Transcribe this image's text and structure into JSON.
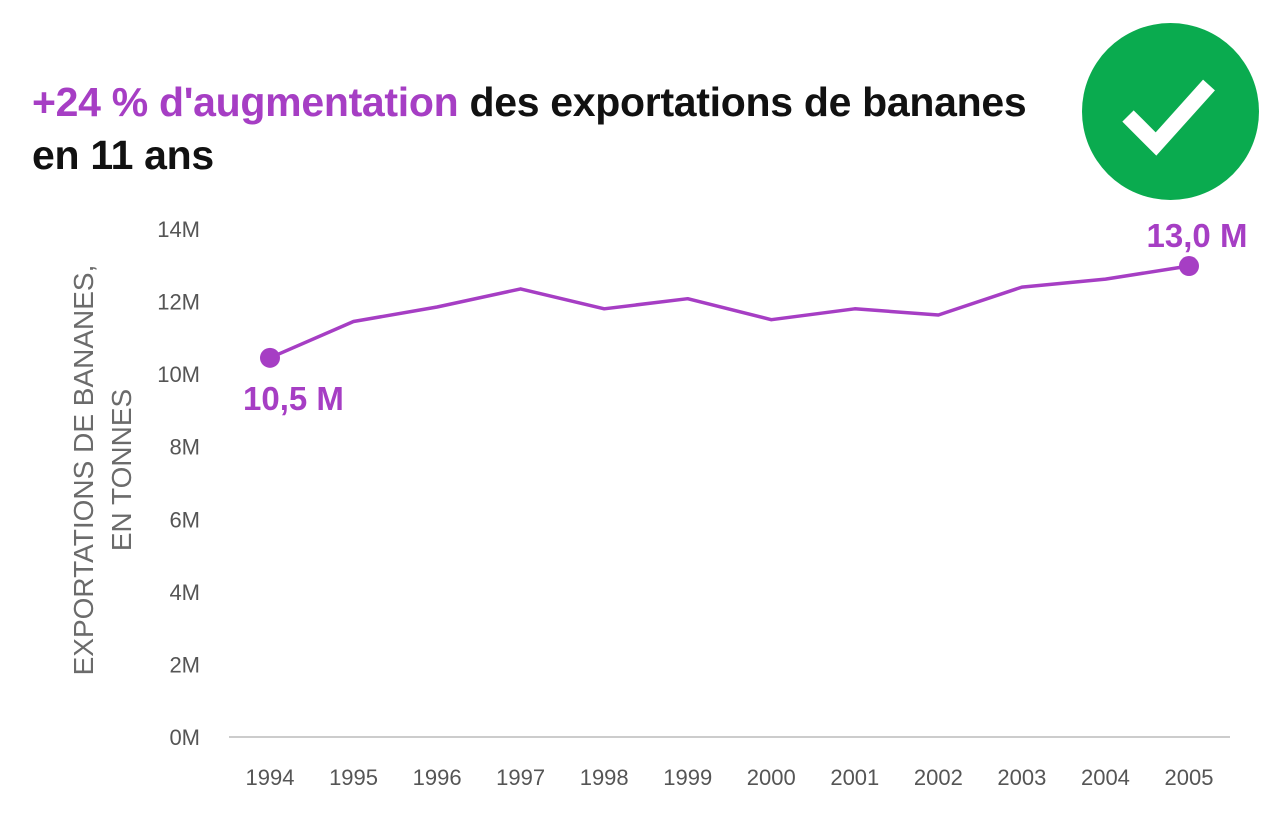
{
  "title": {
    "highlight": "+24 % d'augmentation",
    "rest": " des exportations de bananes en 11 ans"
  },
  "badge": {
    "icon": "checkmark-icon",
    "color": "#0aab4f"
  },
  "colors": {
    "accent": "#a63ec4",
    "axis": "#cccccc",
    "text": "#555555"
  },
  "chart_data": {
    "type": "line",
    "title": "+24 % d'augmentation des exportations de bananes en 11 ans",
    "xlabel": "",
    "ylabel": "EXPORTATIONS DE BANANES, EN TONNES",
    "ylabel_lines": [
      "EXPORTATIONS DE BANANES,",
      "EN TONNES"
    ],
    "x": [
      "1994",
      "1995",
      "1996",
      "1997",
      "1998",
      "1999",
      "2000",
      "2001",
      "2002",
      "2003",
      "2004",
      "2005"
    ],
    "series": [
      {
        "values": [
          10.45,
          11.45,
          11.85,
          12.35,
          11.8,
          12.08,
          11.5,
          11.8,
          11.63,
          12.4,
          12.62,
          12.98
        ]
      }
    ],
    "ylim": [
      0,
      14
    ],
    "yticks": [
      0,
      2,
      4,
      6,
      8,
      10,
      12,
      14
    ],
    "ytick_labels": [
      "0M",
      "2M",
      "4M",
      "6M",
      "8M",
      "10M",
      "12M",
      "14M"
    ],
    "grid": false,
    "annotations": [
      {
        "text": "10,5 M",
        "x": "1994",
        "y": 10.45,
        "position": "below"
      },
      {
        "text": "13,0 M",
        "x": "2005",
        "y": 12.98,
        "position": "above"
      }
    ]
  }
}
